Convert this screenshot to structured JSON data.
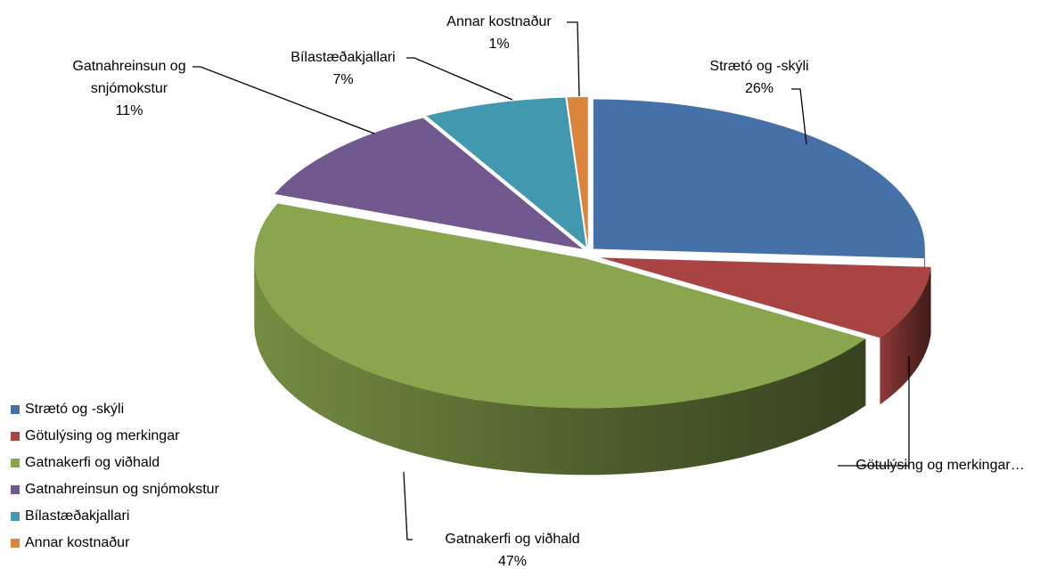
{
  "chart_data": {
    "type": "pie3d",
    "categories": [
      "Strætó og -skýli",
      "Götulýsing og merkingar",
      "Gatnakerfi og viðhald",
      "Gatnahreinsun og snjómokstur",
      "Bílastæðakjallari",
      "Annar kostnaður"
    ],
    "values": [
      26,
      8,
      47,
      11,
      7,
      1
    ],
    "value_labels": [
      "26%",
      null,
      "47%",
      "11%",
      "7%",
      "1%"
    ],
    "slice_labels": [
      [
        "Strætó og -skýli"
      ],
      [
        "Götulýsing og merkingar…"
      ],
      [
        "Gatnakerfi og viðhald"
      ],
      [
        "Gatnahreinsun og",
        "snjómokstur"
      ],
      [
        "Bílastæðakjallari"
      ],
      [
        "Annar kostnaður"
      ]
    ],
    "colors": [
      "#4571a8",
      "#a84442",
      "#89a54e",
      "#71588f",
      "#4198af",
      "#db843d"
    ],
    "legend": "left"
  }
}
